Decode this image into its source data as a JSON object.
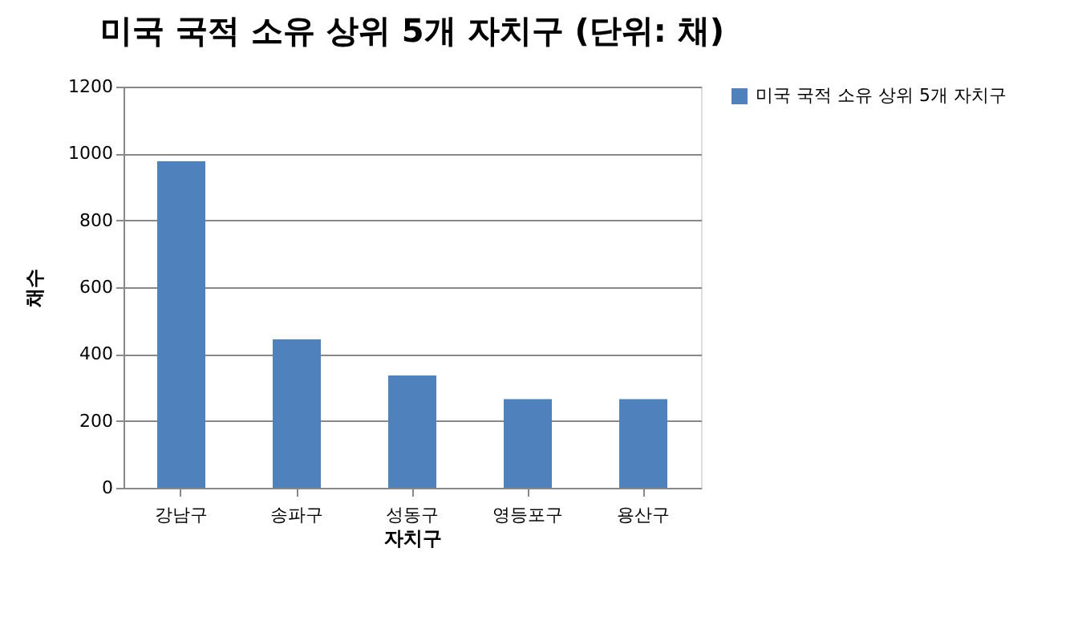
{
  "chart_data": {
    "type": "bar",
    "title": "미국 국적 소유 상위 5개 자치구 (단위: 채)",
    "xlabel": "자치구",
    "ylabel": "채수",
    "categories": [
      "강남구",
      "송파구",
      "성동구",
      "영등포구",
      "용산구"
    ],
    "series": [
      {
        "name": "미국 국적 소유 상위 5개 자치구",
        "color": "#4f81bd",
        "values": [
          977,
          444,
          336,
          265,
          265
        ]
      }
    ],
    "ylim": [
      0,
      1200
    ],
    "yticks": [
      0,
      200,
      400,
      600,
      800,
      1000,
      1200
    ],
    "grid": "y",
    "legend": "right"
  }
}
